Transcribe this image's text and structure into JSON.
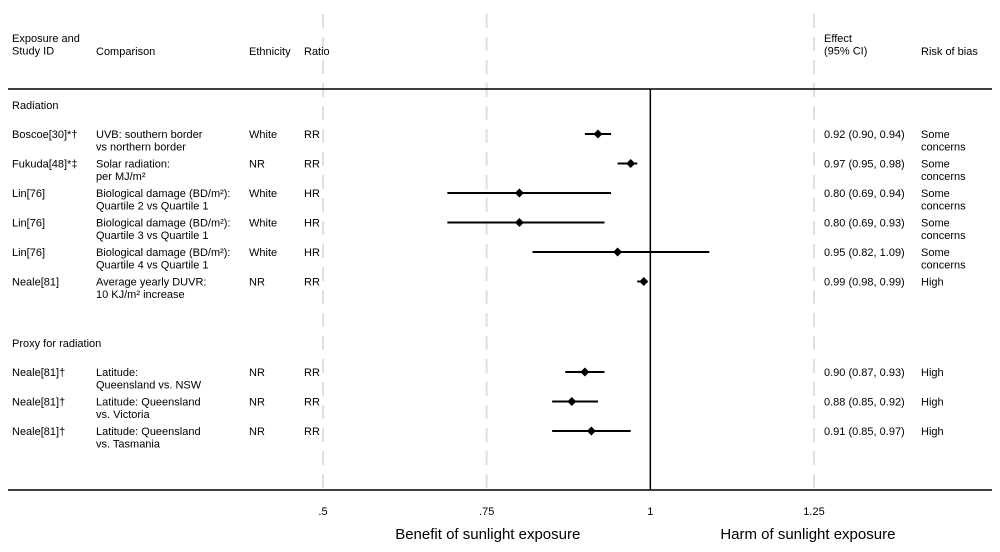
{
  "headers": {
    "exposure": [
      "Exposure and",
      "Study ID"
    ],
    "comparison": "Comparison",
    "ethnicity": "Ethnicity",
    "ratio": "Ratio",
    "effect": [
      "Effect",
      "(95% CI)"
    ],
    "risk": "Risk of bias"
  },
  "colors": {
    "line": "#000000",
    "grid": "#e0e0e0"
  },
  "chart_data": {
    "type": "forest",
    "reference_line": 1,
    "x_range": [
      0.5,
      1.25
    ],
    "x_ticks": [
      {
        "value": 0.5,
        "label": ".5"
      },
      {
        "value": 0.75,
        "label": ".75"
      },
      {
        "value": 1,
        "label": "1"
      },
      {
        "value": 1.25,
        "label": "1.25"
      }
    ],
    "grid": true,
    "footer_left": "Benefit of sunlight exposure",
    "footer_right": "Harm of sunlight exposure",
    "groups": [
      {
        "label": "Radiation",
        "rows": [
          {
            "study": "Boscoe[30]*†",
            "comparison": [
              "UVB: southern border",
              "vs northern border"
            ],
            "ethnicity": "White",
            "ratio": "RR",
            "est": 0.92,
            "lo": 0.9,
            "hi": 0.94,
            "effect": "0.92 (0.90, 0.94)",
            "risk": [
              "Some",
              "concerns"
            ]
          },
          {
            "study": "Fukuda[48]*‡",
            "comparison": [
              "Solar radiation:",
              "per MJ/m²"
            ],
            "ethnicity": "NR",
            "ratio": "RR",
            "est": 0.97,
            "lo": 0.95,
            "hi": 0.98,
            "effect": "0.97 (0.95, 0.98)",
            "risk": [
              "Some",
              "concerns"
            ]
          },
          {
            "study": "Lin[76]",
            "comparison": [
              "Biological damage (BD/m²):",
              "Quartile 2 vs Quartile 1"
            ],
            "ethnicity": "White",
            "ratio": "HR",
            "est": 0.8,
            "lo": 0.69,
            "hi": 0.94,
            "effect": "0.80 (0.69, 0.94)",
            "risk": [
              "Some",
              "concerns"
            ]
          },
          {
            "study": "Lin[76]",
            "comparison": [
              "Biological damage (BD/m²):",
              "Quartile 3 vs Quartile 1"
            ],
            "ethnicity": "White",
            "ratio": "HR",
            "est": 0.8,
            "lo": 0.69,
            "hi": 0.93,
            "effect": "0.80 (0.69, 0.93)",
            "risk": [
              "Some",
              "concerns"
            ]
          },
          {
            "study": "Lin[76]",
            "comparison": [
              "Biological damage (BD/m²):",
              "Quartile 4 vs Quartile 1"
            ],
            "ethnicity": "White",
            "ratio": "HR",
            "est": 0.95,
            "lo": 0.82,
            "hi": 1.09,
            "effect": "0.95 (0.82, 1.09)",
            "risk": [
              "Some",
              "concerns"
            ]
          },
          {
            "study": "Neale[81]",
            "comparison": [
              "Average yearly DUVR:",
              "10 KJ/m² increase"
            ],
            "ethnicity": "NR",
            "ratio": "RR",
            "est": 0.99,
            "lo": 0.98,
            "hi": 0.99,
            "effect": "0.99 (0.98, 0.99)",
            "risk": [
              "High"
            ]
          }
        ]
      },
      {
        "label": "Proxy for radiation",
        "rows": [
          {
            "study": "Neale[81]†",
            "comparison": [
              "Latitude:",
              "Queensland vs. NSW"
            ],
            "ethnicity": "NR",
            "ratio": "RR",
            "est": 0.9,
            "lo": 0.87,
            "hi": 0.93,
            "effect": "0.90 (0.87, 0.93)",
            "risk": [
              "High"
            ]
          },
          {
            "study": "Neale[81]†",
            "comparison": [
              "Latitude: Queensland",
              "vs. Victoria"
            ],
            "ethnicity": "NR",
            "ratio": "RR",
            "est": 0.88,
            "lo": 0.85,
            "hi": 0.92,
            "effect": "0.88 (0.85, 0.92)",
            "risk": [
              "High"
            ]
          },
          {
            "study": "Neale[81]†",
            "comparison": [
              "Latitude: Queensland",
              "vs. Tasmania"
            ],
            "ethnicity": "NR",
            "ratio": "RR",
            "est": 0.91,
            "lo": 0.85,
            "hi": 0.97,
            "effect": "0.91 (0.85, 0.97)",
            "risk": [
              "High"
            ]
          }
        ]
      }
    ]
  }
}
